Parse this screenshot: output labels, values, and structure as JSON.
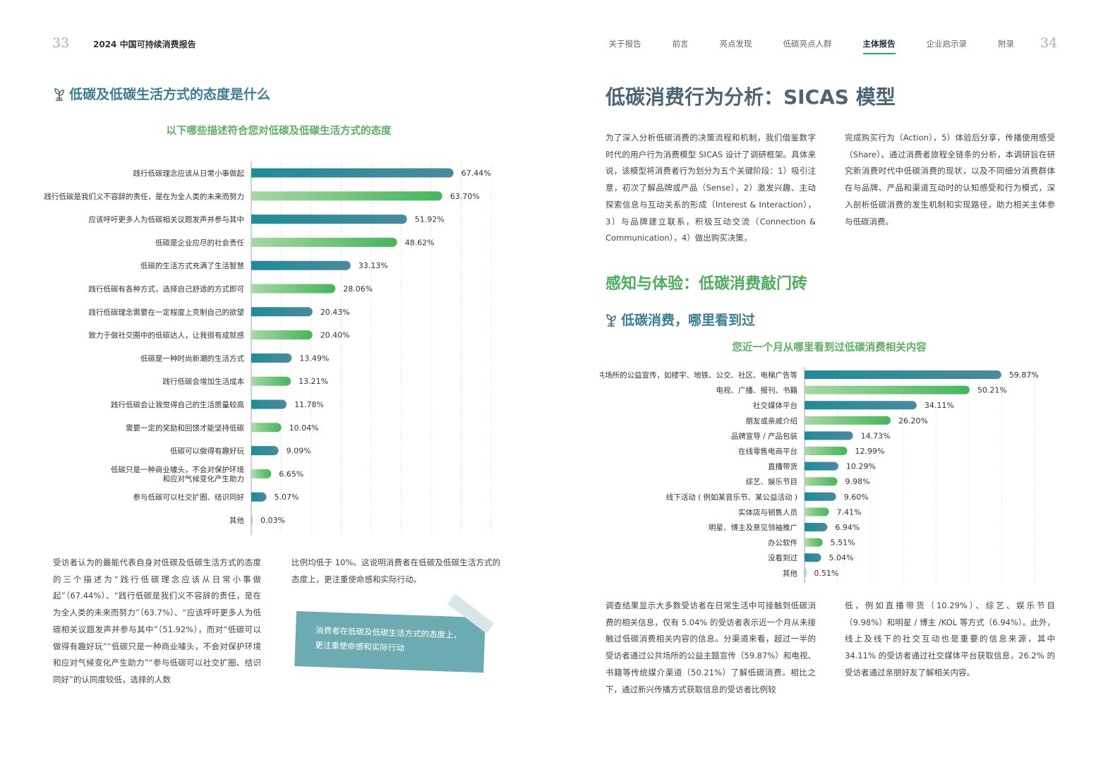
{
  "header": {
    "left_page_number": "33",
    "right_page_number": "34",
    "report_title": "2024 中国可持续消费报告",
    "nav": [
      {
        "label": "关于报告",
        "active": false
      },
      {
        "label": "前言",
        "active": false
      },
      {
        "label": "亮点发现",
        "active": false
      },
      {
        "label": "低碳亮点人群",
        "active": false
      },
      {
        "label": "主体报告",
        "active": true
      },
      {
        "label": "企业启示录",
        "active": false
      },
      {
        "label": "附录",
        "active": false
      }
    ]
  },
  "left": {
    "section_heading": "低碳及低碳生活方式的态度是什么",
    "paragraph1": "受访者认为的最能代表自身对低碳及低碳生活方式的态度的三个描述为“践行低碳理念应该从日常小事做起”（67.44%）、“践行低碳是我们义不容辞的责任，是在为全人类的未来而努力”（63.7%）、“应该呼吁更多人为低碳相关议题发声并参与其中”（51.92%），而对“低碳可以做得有趣好玩”“低碳只是一种商业噱头，不会对保护环境和应对气候变化产生助力”“参与低碳可以社交扩圈、结识同好”的认同度较低，选择的人数",
    "paragraph2": "比例均低于 10%。这说明消费者在低碳及低碳生活方式的态度上，更注重使命感和实际行动。",
    "callout": [
      "消费者在低碳及低碳生活方式的态度上，",
      "更注重使命感和实际行动"
    ]
  },
  "right": {
    "main_heading": "低碳消费行为分析：SICAS 模型",
    "intro_col1": "为了深入分析低碳消费的决策流程和机制，我们借鉴数字时代的用户行为消费模型 SICAS 设计了调研框架。具体来说，该模型将消费者行为划分为五个关键阶段：1）吸引注意，初次了解品牌或产品（Sense），2）激发兴趣、主动探索信息与互动关系的形成（Interest & Interaction），3）与品牌建立联系，积极互动交流（Connection & Communication），4）做出购买决策，",
    "intro_col2": "完成购买行为（Action），5）体验后分享，传播使用感受（Share）。通过消费者旅程全链条的分析，本调研旨在研究新消费时代中低碳消费的现状，以及不同细分消费群体在与品牌、产品和渠道互动时的认知感受和行为模式，深入剖析低碳消费的发生机制和实现路径，助力相关主体参与低碳消费。",
    "section_heading": "感知与体验：低碳消费敲门砖",
    "sub_heading": "低碳消费，哪里看到过",
    "result_col1": "调查结果显示大多数受访者在日常生活中可接触到低碳消费的相关信息，仅有 5.04% 的受访者表示近一个月从未接触过低碳消费相关内容的信息。分渠道来看，超过一半的受访者通过公共场所的公益主题宣传（59.87%）和电视、书籍等传统媒介渠道（50.21%）了解低碳消费。相比之下，通过新兴传播方式获取信息的受访者比例较",
    "result_col2": "低，例如直播带货（10.29%）、综艺、娱乐节目（9.98%）和明星 / 博主 /KOL 等方式（6.94%）。此外，线上及线下的社交互动也是重要的信息来源，其中 34.11% 的受访者通过社交媒体平台获取信息，26.2% 的受访者通过亲朋好友了解相关内容。"
  },
  "chart_data": [
    {
      "type": "bar",
      "orientation": "horizontal",
      "title": "以下哪些描述符合您对低碳及低碳生活方式的态度",
      "xlim": [
        0,
        80
      ],
      "grid": true,
      "colors": [
        "#2a8e9a",
        "#5cbd6a"
      ],
      "categories": [
        "践行低碳理念应该从日常小事做起",
        "践行低碳是我们义不容辞的责任，是在为全人类的未来而努力",
        "应该呼吁更多人为低碳相关议题发声并参与其中",
        "低碳是企业应尽的社会责任",
        "低碳的生活方式充满了生活智慧",
        "践行低碳有各种方式，选择自己舒适的方式即可",
        "践行低碳理念需要在一定程度上克制自己的欲望",
        "致力于做社交圈中的低碳达人，让我很有成就感",
        "低碳是一种时尚新潮的生活方式",
        "践行低碳会增加生活成本",
        "践行低碳会让我觉得自己的生活质量较高",
        "需要一定的奖励和回馈才能坚持低碳",
        "低碳可以做得有趣好玩",
        "低碳只是一种商业噱头，不会对保护环境|和应对气候变化产生助力",
        "参与低碳可以社交扩圈、结识同好",
        "其他"
      ],
      "values": [
        67.44,
        63.7,
        51.92,
        48.62,
        33.13,
        28.06,
        20.43,
        20.4,
        13.49,
        13.21,
        11.78,
        10.04,
        9.09,
        6.65,
        5.07,
        0.03
      ],
      "value_labels": [
        "67.44%",
        "63.70%",
        "51.92%",
        "48.62%",
        "33.13%",
        "28.06%",
        "20.43%",
        "20.40%",
        "13.49%",
        "13.21%",
        "11.78%",
        "10.04%",
        "9.09%",
        "6.65%",
        "5.07%",
        "0.03%"
      ]
    },
    {
      "type": "bar",
      "orientation": "horizontal",
      "title": "您近一个月从哪里看到过低碳消费相关内容",
      "xlim": [
        0,
        70
      ],
      "grid": true,
      "colors": [
        "#2a8e9a",
        "#5cbd6a"
      ],
      "categories": [
        "公共场所的公益宣传，如楼宇、地铁、公交、社区、电梯广告等",
        "电视、广播、报刊、书籍",
        "社交媒体平台",
        "朋友或亲戚介绍",
        "品牌宣导 / 产品包装",
        "在线零售电商平台",
        "直播带货",
        "综艺、娱乐节目",
        "线下活动 ( 例如某音乐节、某公益活动 )",
        "实体店与销售人员",
        "明星、博主及意见领袖推广",
        "办公软件",
        "没看到过",
        "其他"
      ],
      "values": [
        59.87,
        50.21,
        34.11,
        26.2,
        14.73,
        12.99,
        10.29,
        9.98,
        9.6,
        7.41,
        6.94,
        5.51,
        5.04,
        0.51
      ],
      "value_labels": [
        "59.87%",
        "50.21%",
        "34.11%",
        "26.20%",
        "14.73%",
        "12.99%",
        "10.29%",
        "9.98%",
        "9.60%",
        "7.41%",
        "6.94%",
        "5.51%",
        "5.04%",
        "0.51%"
      ]
    }
  ]
}
